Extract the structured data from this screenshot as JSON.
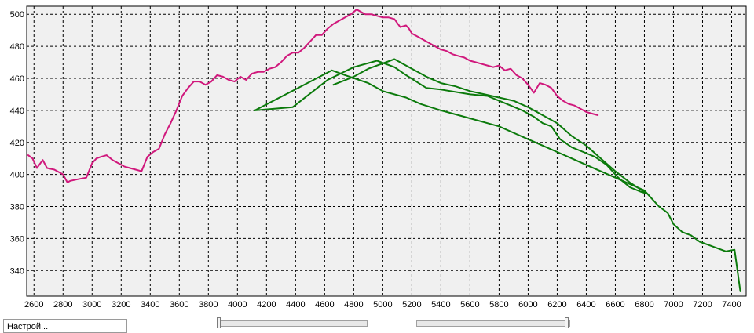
{
  "chart_data": {
    "type": "line",
    "xlim": [
      2550,
      7500
    ],
    "ylim": [
      324,
      505
    ],
    "x_ticks": [
      2600,
      2800,
      3000,
      3200,
      3400,
      3600,
      3800,
      4000,
      4200,
      4400,
      4600,
      4800,
      5000,
      5200,
      5400,
      5600,
      5800,
      6000,
      6200,
      6400,
      6600,
      6800,
      7000,
      7200,
      7400
    ],
    "y_ticks": [
      340,
      360,
      380,
      400,
      420,
      440,
      460,
      480,
      500
    ],
    "grid": true,
    "plot_background": "#f0f0f0",
    "series": [
      {
        "color": "#d0187c",
        "x": [
          2560,
          2590,
          2620,
          2660,
          2690,
          2740,
          2800,
          2830,
          2850,
          2900,
          2960,
          3000,
          3030,
          3060,
          3100,
          3140,
          3180,
          3220,
          3260,
          3300,
          3340,
          3380,
          3420,
          3460,
          3500,
          3540,
          3580,
          3620,
          3660,
          3700,
          3740,
          3780,
          3820,
          3860,
          3900,
          3940,
          3980,
          4020,
          4060,
          4100,
          4140,
          4180,
          4220,
          4260,
          4300,
          4340,
          4380,
          4420,
          4460,
          4500,
          4540,
          4580,
          4620,
          4660,
          4700,
          4740,
          4780,
          4820,
          4860,
          4880,
          4900,
          4920,
          4960,
          5000,
          5040,
          5080,
          5120,
          5160,
          5180,
          5200,
          5240,
          5280,
          5320,
          5360,
          5400,
          5440,
          5480,
          5520,
          5560,
          5600,
          5640,
          5680,
          5720,
          5760,
          5800,
          5840,
          5880,
          5920,
          5960,
          6000,
          6040,
          6080,
          6120,
          6160,
          6200,
          6240,
          6280,
          6320,
          6360,
          6400,
          6440,
          6480
        ],
        "y": [
          412,
          410,
          404,
          409,
          404,
          403,
          400,
          395,
          396,
          397,
          398,
          407,
          410,
          411,
          412,
          409,
          407,
          405,
          404,
          403,
          402,
          411,
          414,
          416,
          425,
          432,
          440,
          449,
          454,
          458,
          458,
          456,
          458,
          462,
          461,
          459,
          458,
          461,
          459,
          463,
          464,
          464,
          466,
          467,
          470,
          474,
          476,
          476,
          479,
          483,
          487,
          487,
          491,
          494,
          496,
          498,
          500,
          503,
          501,
          500,
          500,
          500,
          499,
          498,
          498,
          497,
          492,
          493,
          491,
          488,
          486,
          484,
          482,
          480,
          478,
          477,
          475,
          474,
          473,
          471,
          470,
          469,
          468,
          467,
          468,
          465,
          466,
          462,
          460,
          456,
          451,
          457,
          456,
          454,
          449,
          446,
          444,
          443,
          441,
          439,
          438,
          437
        ]
      },
      {
        "color": "#0b7a0b",
        "x": [
          4120,
          4380,
          4620,
          4800,
          4960,
          5080,
          5160,
          5300,
          5400,
          5600,
          5720,
          5800,
          5880,
          5960,
          6040,
          6100,
          6160,
          6220,
          6300,
          6380,
          6460,
          6540,
          6620,
          6700,
          6780,
          6820
        ],
        "y": [
          440,
          442,
          459,
          467,
          471,
          467,
          462,
          454,
          453,
          450,
          449,
          446,
          443,
          440,
          436,
          432,
          430,
          422,
          417,
          414,
          411,
          406,
          398,
          392,
          389,
          388
        ]
      },
      {
        "color": "#0b7a0b",
        "x": [
          4120,
          4650,
          4740,
          4900,
          5000,
          5160,
          5260,
          5400,
          5560,
          5720,
          5800,
          5900,
          6000,
          6100,
          6200,
          6300,
          6400,
          6500,
          6600,
          6700,
          6800,
          6840,
          6900,
          6960,
          7000,
          7060,
          7120,
          7180,
          7240,
          7300,
          7360,
          7420,
          7460
        ],
        "y": [
          440,
          465,
          462,
          457,
          452,
          448,
          444,
          440,
          436,
          432,
          430,
          426,
          422,
          418,
          414,
          410,
          406,
          402,
          398,
          394,
          390,
          386,
          380,
          376,
          369,
          364,
          362,
          358,
          356,
          354,
          352,
          353,
          327
        ]
      },
      {
        "color": "#0b7a0b",
        "x": [
          4660,
          4800,
          4900,
          5080,
          5200,
          5300,
          5400,
          5500,
          5600,
          5700,
          5800,
          5900,
          6000,
          6100,
          6200,
          6300,
          6400,
          6500,
          6600,
          6700,
          6800
        ],
        "y": [
          456,
          461,
          466,
          472,
          466,
          461,
          457,
          455,
          452,
          450,
          448,
          446,
          442,
          437,
          432,
          424,
          418,
          410,
          402,
          395,
          389
        ]
      }
    ]
  },
  "controls": {
    "name_field_value": "Настрой..."
  }
}
